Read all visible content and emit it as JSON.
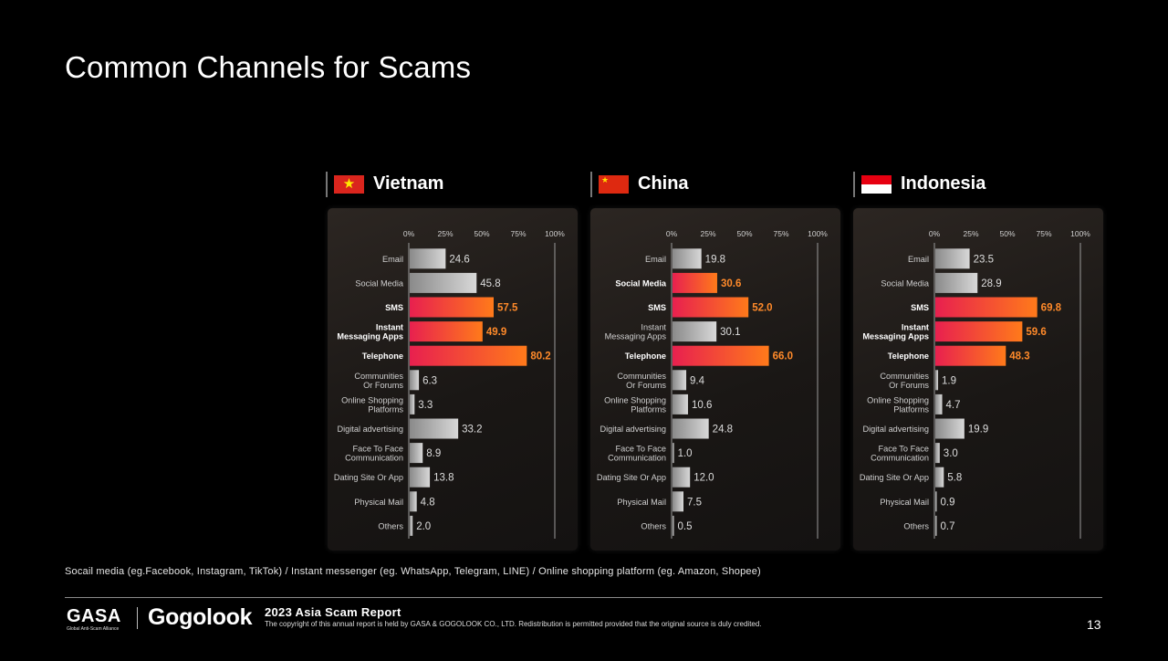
{
  "title": "Common Channels for Scams",
  "footnote": "Socail media (eg.Facebook, Instagram, TikTok) / Instant messenger (eg. WhatsApp, Telegram, LINE) / Online shopping platform (eg. Amazon, Shopee)",
  "footer": {
    "logo_gasa": "GASA",
    "logo_gasa_sub": "Global Anti-Scam Alliance",
    "logo_gogolook": "Gogolook",
    "report_title": "2023 Asia Scam Report",
    "copyright": "The copyright of this annual report is held by GASA & GOGOLOOK CO., LTD. Redistribution is permitted provided that the original source is duly credited.",
    "page_number": "13"
  },
  "colors": {
    "background": "#000000",
    "highlight_start": "#e8204f",
    "highlight_end": "#ff7a1a",
    "highlight_label": "#ff8a2a",
    "grey_bar_start": "#8a8a8a",
    "grey_bar_end": "#d8d8d8"
  },
  "chart_data": [
    {
      "type": "bar",
      "orientation": "horizontal",
      "title": "Vietnam",
      "flag_icon": "vietnam-flag-icon",
      "xlim": [
        0,
        100
      ],
      "xticks": [
        "0%",
        "25%",
        "50%",
        "75%",
        "100%"
      ],
      "categories": [
        "Email",
        "Social Media",
        "SMS",
        "Instant\nMessaging Apps",
        "Telephone",
        "Communities\nOr Forums",
        "Online Shopping\nPlatforms",
        "Digital advertising",
        "Face To Face\nCommunication",
        "Dating Site Or App",
        "Physical Mail",
        "Others"
      ],
      "values": [
        24.6,
        45.8,
        57.5,
        49.9,
        80.2,
        6.3,
        3.3,
        33.2,
        8.9,
        13.8,
        4.8,
        2.0
      ],
      "value_labels": [
        "24.6",
        "45.8",
        "57.5",
        "49.9",
        "80.2",
        "6.3",
        "3.3",
        "33.2",
        "8.9",
        "13.8",
        "4.8",
        "2.0"
      ],
      "highlighted": [
        false,
        false,
        true,
        true,
        true,
        false,
        false,
        false,
        false,
        false,
        false,
        false
      ]
    },
    {
      "type": "bar",
      "orientation": "horizontal",
      "title": "China",
      "flag_icon": "china-flag-icon",
      "xlim": [
        0,
        100
      ],
      "xticks": [
        "0%",
        "25%",
        "50%",
        "75%",
        "100%"
      ],
      "categories": [
        "Email",
        "Social Media",
        "SMS",
        "Instant\nMessaging Apps",
        "Telephone",
        "Communities\nOr Forums",
        "Online Shopping\nPlatforms",
        "Digital advertising",
        "Face To Face\nCommunication",
        "Dating Site Or App",
        "Physical Mail",
        "Others"
      ],
      "values": [
        19.8,
        30.6,
        52.0,
        30.1,
        66.0,
        9.4,
        10.6,
        24.8,
        1.0,
        12.0,
        7.5,
        0.5
      ],
      "value_labels": [
        "19.8",
        "30.6",
        "52.0",
        "30.1",
        "66.0",
        "9.4",
        "10.6",
        "24.8",
        "1.0",
        "12.0",
        "7.5",
        "0.5"
      ],
      "highlighted": [
        false,
        true,
        true,
        false,
        true,
        false,
        false,
        false,
        false,
        false,
        false,
        false
      ]
    },
    {
      "type": "bar",
      "orientation": "horizontal",
      "title": "Indonesia",
      "flag_icon": "indonesia-flag-icon",
      "xlim": [
        0,
        100
      ],
      "xticks": [
        "0%",
        "25%",
        "50%",
        "75%",
        "100%"
      ],
      "categories": [
        "Email",
        "Social Media",
        "SMS",
        "Instant\nMessaging Apps",
        "Telephone",
        "Communities\nOr Forums",
        "Online Shopping\nPlatforms",
        "Digital advertising",
        "Face To Face\nCommunication",
        "Dating Site Or App",
        "Physical Mail",
        "Others"
      ],
      "values": [
        23.5,
        28.9,
        69.8,
        59.6,
        48.3,
        1.9,
        4.7,
        19.9,
        3.0,
        5.8,
        0.9,
        0.7
      ],
      "value_labels": [
        "23.5",
        "28.9",
        "69.8",
        "59.6",
        "48.3",
        "1.9",
        "4.7",
        "19.9",
        "3.0",
        "5.8",
        "0.9",
        "0.7"
      ],
      "highlighted": [
        false,
        false,
        true,
        true,
        true,
        false,
        false,
        false,
        false,
        false,
        false,
        false
      ]
    }
  ]
}
